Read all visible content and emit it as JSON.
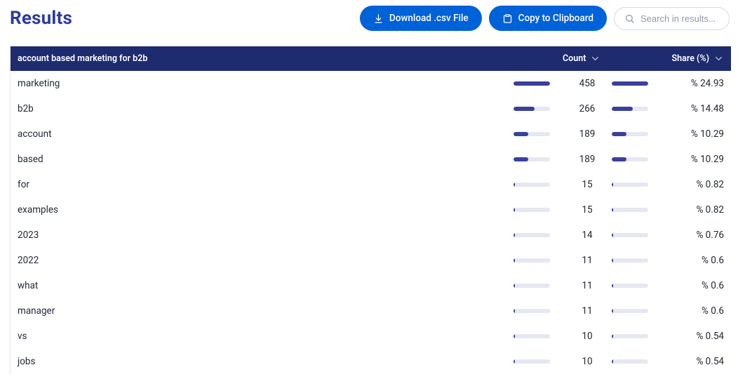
{
  "page": {
    "title": "Results"
  },
  "toolbar": {
    "download_label": "Download .csv File",
    "copy_label": "Copy to Clipboard",
    "search_placeholder": "Search in results..."
  },
  "colors": {
    "accent": "#3b3f9e",
    "header_bg": "#1e2b6f",
    "btn_primary": "#0062d8",
    "title": "#2d3a9f",
    "bar_track": "#e5e8f0",
    "border": "#e6e9f2",
    "text": "#1f2937"
  },
  "table": {
    "header": {
      "query_label": "account based marketing for b2b",
      "count_label": "Count",
      "share_label": "Share (%)"
    },
    "max_count": 458,
    "max_share": 24.93,
    "rows": [
      {
        "term": "marketing",
        "count": 458,
        "share_text": "% 24.93",
        "share": 24.93
      },
      {
        "term": "b2b",
        "count": 266,
        "share_text": "% 14.48",
        "share": 14.48
      },
      {
        "term": "account",
        "count": 189,
        "share_text": "% 10.29",
        "share": 10.29
      },
      {
        "term": "based",
        "count": 189,
        "share_text": "% 10.29",
        "share": 10.29
      },
      {
        "term": "for",
        "count": 15,
        "share_text": "% 0.82",
        "share": 0.82
      },
      {
        "term": "examples",
        "count": 15,
        "share_text": "% 0.82",
        "share": 0.82
      },
      {
        "term": "2023",
        "count": 14,
        "share_text": "% 0.76",
        "share": 0.76
      },
      {
        "term": "2022",
        "count": 11,
        "share_text": "% 0.6",
        "share": 0.6
      },
      {
        "term": "what",
        "count": 11,
        "share_text": "% 0.6",
        "share": 0.6
      },
      {
        "term": "manager",
        "count": 11,
        "share_text": "% 0.6",
        "share": 0.6
      },
      {
        "term": "vs",
        "count": 10,
        "share_text": "% 0.54",
        "share": 0.54
      },
      {
        "term": "jobs",
        "count": 10,
        "share_text": "% 0.54",
        "share": 0.54
      }
    ]
  }
}
